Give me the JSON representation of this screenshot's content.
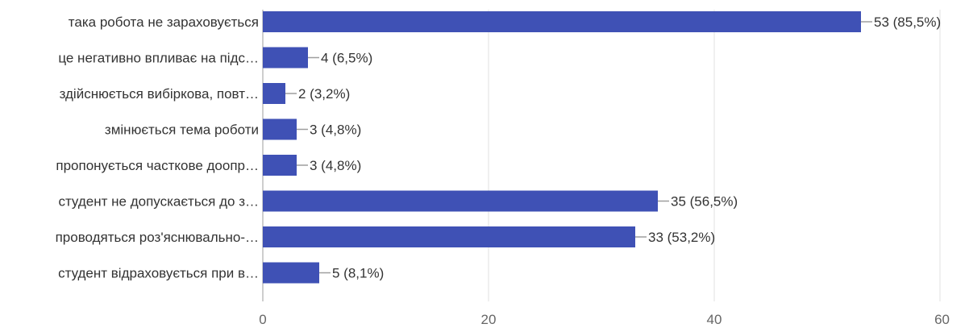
{
  "chart_data": {
    "type": "bar",
    "orientation": "horizontal",
    "categories": [
      "така робота не зараховується",
      "це негативно впливає на підс…",
      "здійснюється вибіркова, повт…",
      "змінюється тема роботи",
      "пропонується часткове доопр…",
      "студент не допускається до з…",
      "проводяться роз'яснювально-…",
      "студент відраховується при в…"
    ],
    "values": [
      53,
      4,
      2,
      3,
      3,
      35,
      33,
      5
    ],
    "data_labels": [
      "53 (85,5%)",
      "4 (6,5%)",
      "2 (3,2%)",
      "3 (4,8%)",
      "3 (4,8%)",
      "35 (56,5%)",
      "33 (53,2%)",
      "5 (8,1%)"
    ],
    "xlim": [
      0,
      60
    ],
    "xticks": [
      0,
      20,
      40,
      60
    ],
    "grid": true,
    "bar_color": "#3f51b5"
  }
}
